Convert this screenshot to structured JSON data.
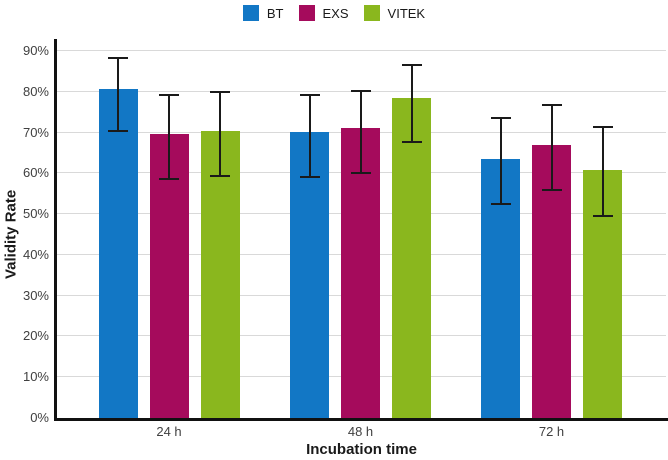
{
  "chart_data": {
    "type": "bar",
    "title": "",
    "xlabel": "Incubation time",
    "ylabel": "Validity Rate",
    "categories": [
      "24 h",
      "48 h",
      "72 h"
    ],
    "series": [
      {
        "name": "BT",
        "color": "#1277c5",
        "values": [
          80.7,
          70.1,
          63.6
        ],
        "error_low": [
          70.5,
          59.2,
          52.6
        ],
        "error_high": [
          88.2,
          79.3,
          73.6
        ]
      },
      {
        "name": "EXS",
        "color": "#a50b5c",
        "values": [
          69.7,
          71.1,
          67.0
        ],
        "error_low": [
          58.5,
          60.1,
          56.0
        ],
        "error_high": [
          79.1,
          80.2,
          76.7
        ]
      },
      {
        "name": "VITEK",
        "color": "#8ab71e",
        "values": [
          70.3,
          78.5,
          60.8
        ],
        "error_low": [
          59.3,
          67.8,
          49.5
        ],
        "error_high": [
          79.9,
          86.6,
          71.4
        ]
      }
    ],
    "ylim": [
      0,
      90
    ],
    "ytick_values": [
      0,
      10,
      20,
      30,
      40,
      50,
      60,
      70,
      80,
      90
    ],
    "ytick_labels": [
      "0%",
      "10%",
      "20%",
      "30%",
      "40%",
      "50%",
      "60%",
      "70%",
      "80%",
      "90%"
    ],
    "grid": "horizontal",
    "legend_position": "top-center",
    "error_bars": true,
    "axis_color": "#111111",
    "gridline_color": "#d9d9d9"
  }
}
